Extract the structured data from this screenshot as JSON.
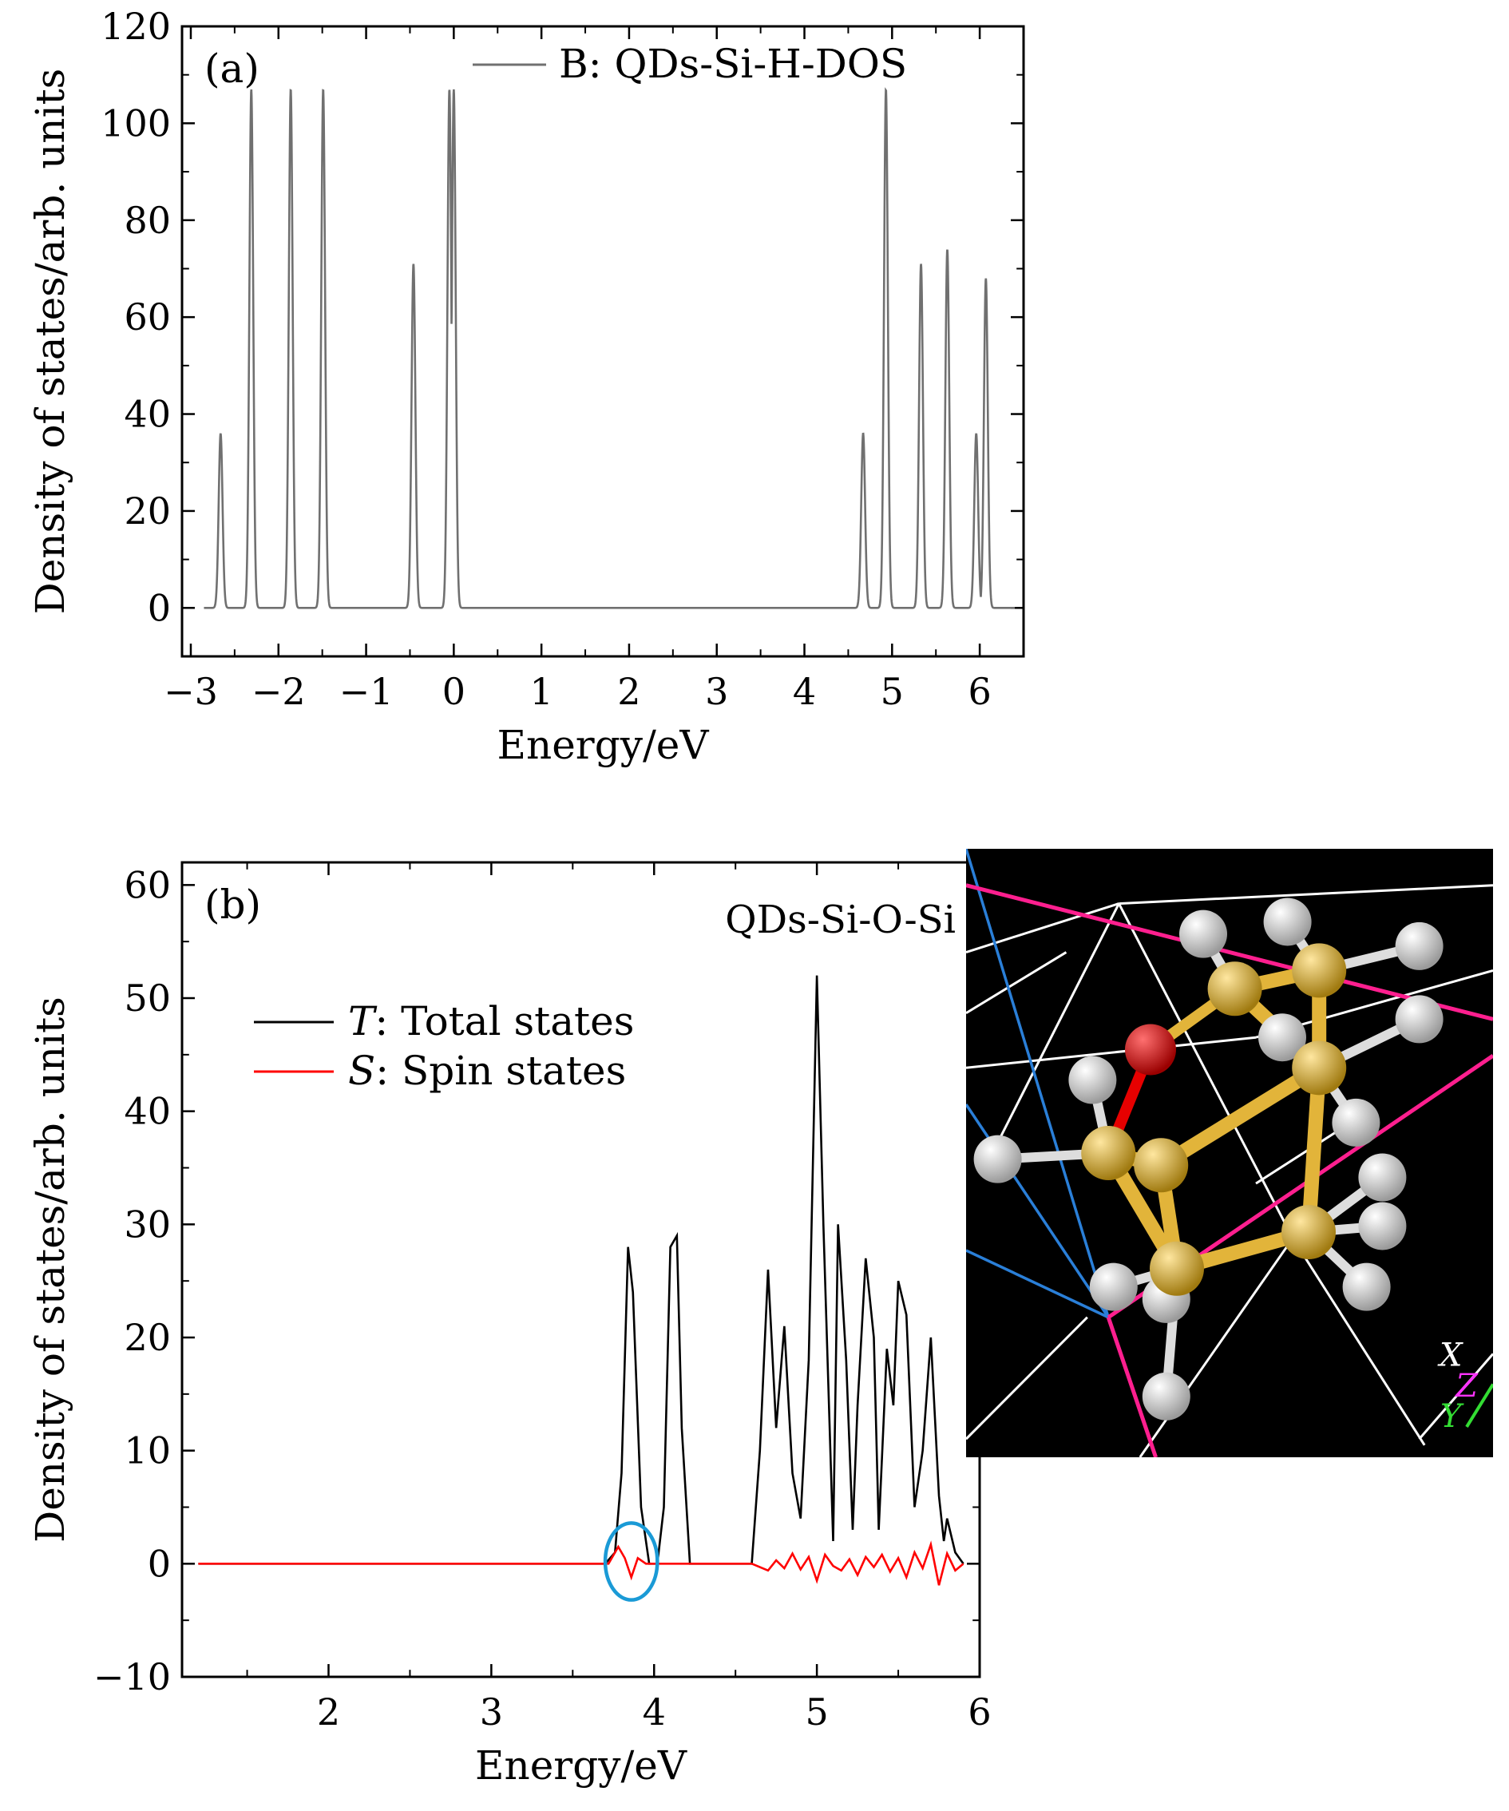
{
  "chart_data": [
    {
      "type": "line",
      "panel_label": "(a)",
      "xlabel": "Energy/eV",
      "ylabel": "Density of states/arb. units",
      "xlim": [
        -3.1,
        6.5
      ],
      "ylim": [
        -10,
        120
      ],
      "xticks": [
        -3,
        -2,
        -1,
        0,
        1,
        2,
        3,
        4,
        5,
        6
      ],
      "xtick_labels": [
        "−3",
        "−2",
        "−1",
        "0",
        "1",
        "2",
        "3",
        "4",
        "5",
        "6"
      ],
      "yticks": [
        0,
        20,
        40,
        60,
        80,
        100,
        120
      ],
      "ytick_labels": [
        "0",
        "20",
        "40",
        "60",
        "80",
        "100",
        "120"
      ],
      "grid": false,
      "legend_position": "top-right",
      "series": [
        {
          "name": "B: QDs-Si-H-DOS",
          "color": "#707070",
          "x_range": [
            -2.85,
            6.4
          ],
          "peaks": [
            {
              "x": -2.66,
              "y": 36
            },
            {
              "x": -2.31,
              "y": 107
            },
            {
              "x": -1.86,
              "y": 107
            },
            {
              "x": -1.49,
              "y": 107
            },
            {
              "x": -0.46,
              "y": 71
            },
            {
              "x": -0.05,
              "y": 107
            },
            {
              "x": 0.0,
              "y": 107
            },
            {
              "x": 4.67,
              "y": 36
            },
            {
              "x": 4.93,
              "y": 107
            },
            {
              "x": 5.33,
              "y": 71
            },
            {
              "x": 5.63,
              "y": 74
            },
            {
              "x": 5.96,
              "y": 36
            },
            {
              "x": 6.07,
              "y": 68
            }
          ]
        }
      ]
    },
    {
      "type": "line",
      "panel_label": "(b)",
      "title": "QDs-Si-O-Si",
      "xlabel": "Energy/eV",
      "ylabel": "Density of states/arb. units",
      "xlim": [
        1.1,
        6.0
      ],
      "ylim": [
        -10,
        62
      ],
      "xticks": [
        2,
        3,
        4,
        5,
        6
      ],
      "xtick_labels": [
        "2",
        "3",
        "4",
        "5",
        "6"
      ],
      "yticks": [
        -10,
        0,
        10,
        20,
        30,
        40,
        50,
        60
      ],
      "ytick_labels": [
        "−10",
        "0",
        "10",
        "20",
        "30",
        "40",
        "50",
        "60"
      ],
      "grid": false,
      "legend_position": "upper-left",
      "series": [
        {
          "name_italic": "T",
          "name_rest": ": Total states",
          "color": "#000000",
          "x": [
            1.2,
            3.7,
            3.76,
            3.8,
            3.84,
            3.87,
            3.92,
            3.97,
            4.02,
            4.06,
            4.1,
            4.14,
            4.17,
            4.22,
            4.6,
            4.65,
            4.7,
            4.75,
            4.8,
            4.85,
            4.9,
            4.95,
            5.0,
            5.04,
            5.1,
            5.13,
            5.18,
            5.22,
            5.25,
            5.3,
            5.35,
            5.38,
            5.43,
            5.47,
            5.5,
            5.55,
            5.6,
            5.65,
            5.7,
            5.75,
            5.78,
            5.8,
            5.85,
            5.9
          ],
          "y": [
            0,
            0,
            1,
            8,
            28,
            24,
            5,
            0,
            0,
            5,
            28,
            29,
            12,
            0,
            0,
            10,
            26,
            12,
            21,
            8,
            4,
            18,
            52,
            30,
            2,
            30,
            18,
            3,
            14,
            27,
            20,
            3,
            19,
            14,
            25,
            22,
            5,
            10,
            20,
            6,
            2,
            4,
            1,
            0
          ]
        },
        {
          "name_italic": "S",
          "name_rest": ": Spin states",
          "color": "#ff0000",
          "x": [
            1.2,
            3.72,
            3.78,
            3.82,
            3.86,
            3.9,
            3.95,
            4.6,
            4.7,
            4.75,
            4.8,
            4.85,
            4.9,
            4.95,
            5.0,
            5.05,
            5.1,
            5.15,
            5.2,
            5.25,
            5.3,
            5.35,
            5.4,
            5.45,
            5.5,
            5.55,
            5.6,
            5.65,
            5.7,
            5.75,
            5.8,
            5.85,
            5.9
          ],
          "y": [
            0,
            0,
            1.5,
            0.5,
            -1.2,
            0.5,
            0,
            0,
            -0.6,
            0.3,
            -0.4,
            0.9,
            -0.5,
            0.6,
            -1.5,
            0.8,
            -0.2,
            -0.6,
            0.4,
            -1.0,
            0.6,
            -0.3,
            0.8,
            -0.7,
            0.5,
            -1.2,
            1.0,
            -0.4,
            1.7,
            -1.9,
            0.9,
            -0.6,
            0
          ]
        }
      ],
      "annotation": {
        "type": "ellipse",
        "color": "#1a9ad6",
        "cx": 3.86,
        "cy": 0.2,
        "rx": 0.16,
        "ry": 3.4
      }
    }
  ],
  "inset": {
    "description_color_scheme": {
      "background": "#000000",
      "silicon": "#e2b43a",
      "hydrogen": "#f2f2f2",
      "oxygen": "#e60000",
      "cell_edges_white": "#ffffff",
      "cell_edges_magenta": "#ff1f8f",
      "cell_edges_blue": "#2a7fd8"
    },
    "axis_labels": [
      "X",
      "Z",
      "Y"
    ],
    "axis_colors": [
      "#ffffff",
      "#ff33ff",
      "#33dd33"
    ]
  }
}
